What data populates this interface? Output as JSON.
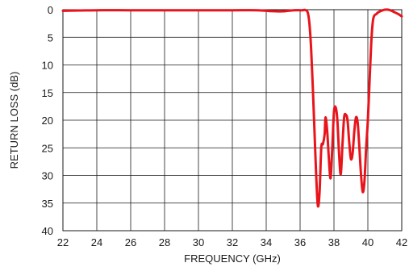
{
  "chart_data": {
    "type": "line",
    "xlabel": "FREQUENCY (GHz)",
    "ylabel": "RETURN LOSS (dB)",
    "xlim": [
      22,
      42
    ],
    "ylim": [
      0,
      40
    ],
    "y_inverted": true,
    "grid": true,
    "x_ticks": [
      "22",
      "24",
      "26",
      "28",
      "30",
      "32",
      "34",
      "36",
      "38",
      "40",
      "42"
    ],
    "y_ticks": [
      "0",
      "5",
      "10",
      "15",
      "20",
      "25",
      "30",
      "35",
      "40"
    ],
    "series": [
      {
        "color": "#e8141b",
        "x": [
          22,
          23,
          24,
          26,
          28,
          30,
          32,
          33.5,
          34.2,
          35,
          35.6,
          36.1,
          36.3,
          36.45,
          36.55,
          36.65,
          36.75,
          36.85,
          36.95,
          37.05,
          37.15,
          37.25,
          37.35,
          37.45,
          37.5,
          37.6,
          37.7,
          37.8,
          37.9,
          38.0,
          38.1,
          38.2,
          38.3,
          38.4,
          38.5,
          38.6,
          38.7,
          38.8,
          38.9,
          39.0,
          39.1,
          39.2,
          39.3,
          39.4,
          39.5,
          39.6,
          39.7,
          39.8,
          39.9,
          40.0,
          40.1,
          40.2,
          40.3,
          40.4,
          40.5,
          40.6,
          40.8,
          41.0,
          41.2,
          41.4,
          41.6,
          41.8,
          42.0
        ],
        "y": [
          0.2,
          0.15,
          0.1,
          0.1,
          0.1,
          0.1,
          0.1,
          0.1,
          0.25,
          0.3,
          0.1,
          0.1,
          0.05,
          0.5,
          2.5,
          7,
          14,
          22,
          30,
          35.5,
          33,
          25,
          24.3,
          22.5,
          19.5,
          22,
          27,
          30.5,
          25,
          18.5,
          17.7,
          20,
          26,
          29.8,
          24.5,
          19.5,
          19,
          20,
          24,
          27,
          26,
          22,
          19.5,
          20.5,
          25,
          30,
          33,
          31,
          25,
          20,
          13,
          6,
          2,
          1,
          0.8,
          0.5,
          0.2,
          0.0,
          0.0,
          0.2,
          0.5,
          0.8,
          1.2
        ]
      }
    ]
  }
}
